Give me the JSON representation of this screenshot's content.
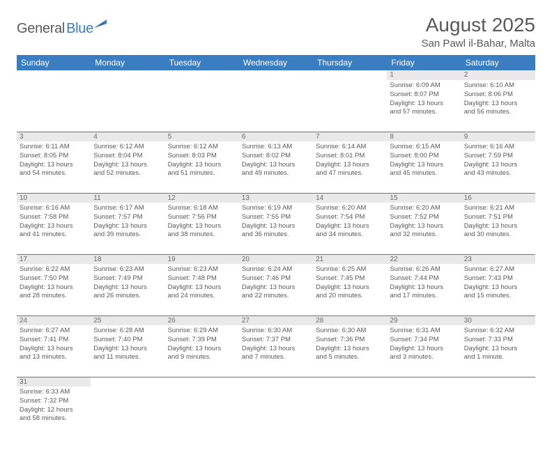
{
  "brand": {
    "name1": "General",
    "name2": "Blue"
  },
  "title": "August 2025",
  "location": "San Pawl il-Bahar, Malta",
  "colors": {
    "header_bg": "#3a7ec1",
    "header_fg": "#ffffff",
    "text": "#595959",
    "daynum_bg": "#e9e9e9",
    "rule": "#3a7ec1"
  },
  "daynames": [
    "Sunday",
    "Monday",
    "Tuesday",
    "Wednesday",
    "Thursday",
    "Friday",
    "Saturday"
  ],
  "weeks": [
    [
      null,
      null,
      null,
      null,
      null,
      {
        "n": "1",
        "sr": "6:09 AM",
        "ss": "8:07 PM",
        "dl": "13 hours and 57 minutes."
      },
      {
        "n": "2",
        "sr": "6:10 AM",
        "ss": "8:06 PM",
        "dl": "13 hours and 56 minutes."
      }
    ],
    [
      {
        "n": "3",
        "sr": "6:11 AM",
        "ss": "8:05 PM",
        "dl": "13 hours and 54 minutes."
      },
      {
        "n": "4",
        "sr": "6:12 AM",
        "ss": "8:04 PM",
        "dl": "13 hours and 52 minutes."
      },
      {
        "n": "5",
        "sr": "6:12 AM",
        "ss": "8:03 PM",
        "dl": "13 hours and 51 minutes."
      },
      {
        "n": "6",
        "sr": "6:13 AM",
        "ss": "8:02 PM",
        "dl": "13 hours and 49 minutes."
      },
      {
        "n": "7",
        "sr": "6:14 AM",
        "ss": "8:01 PM",
        "dl": "13 hours and 47 minutes."
      },
      {
        "n": "8",
        "sr": "6:15 AM",
        "ss": "8:00 PM",
        "dl": "13 hours and 45 minutes."
      },
      {
        "n": "9",
        "sr": "6:16 AM",
        "ss": "7:59 PM",
        "dl": "13 hours and 43 minutes."
      }
    ],
    [
      {
        "n": "10",
        "sr": "6:16 AM",
        "ss": "7:58 PM",
        "dl": "13 hours and 41 minutes."
      },
      {
        "n": "11",
        "sr": "6:17 AM",
        "ss": "7:57 PM",
        "dl": "13 hours and 39 minutes."
      },
      {
        "n": "12",
        "sr": "6:18 AM",
        "ss": "7:56 PM",
        "dl": "13 hours and 38 minutes."
      },
      {
        "n": "13",
        "sr": "6:19 AM",
        "ss": "7:55 PM",
        "dl": "13 hours and 36 minutes."
      },
      {
        "n": "14",
        "sr": "6:20 AM",
        "ss": "7:54 PM",
        "dl": "13 hours and 34 minutes."
      },
      {
        "n": "15",
        "sr": "6:20 AM",
        "ss": "7:52 PM",
        "dl": "13 hours and 32 minutes."
      },
      {
        "n": "16",
        "sr": "6:21 AM",
        "ss": "7:51 PM",
        "dl": "13 hours and 30 minutes."
      }
    ],
    [
      {
        "n": "17",
        "sr": "6:22 AM",
        "ss": "7:50 PM",
        "dl": "13 hours and 28 minutes."
      },
      {
        "n": "18",
        "sr": "6:23 AM",
        "ss": "7:49 PM",
        "dl": "13 hours and 26 minutes."
      },
      {
        "n": "19",
        "sr": "6:23 AM",
        "ss": "7:48 PM",
        "dl": "13 hours and 24 minutes."
      },
      {
        "n": "20",
        "sr": "6:24 AM",
        "ss": "7:46 PM",
        "dl": "13 hours and 22 minutes."
      },
      {
        "n": "21",
        "sr": "6:25 AM",
        "ss": "7:45 PM",
        "dl": "13 hours and 20 minutes."
      },
      {
        "n": "22",
        "sr": "6:26 AM",
        "ss": "7:44 PM",
        "dl": "13 hours and 17 minutes."
      },
      {
        "n": "23",
        "sr": "6:27 AM",
        "ss": "7:43 PM",
        "dl": "13 hours and 15 minutes."
      }
    ],
    [
      {
        "n": "24",
        "sr": "6:27 AM",
        "ss": "7:41 PM",
        "dl": "13 hours and 13 minutes."
      },
      {
        "n": "25",
        "sr": "6:28 AM",
        "ss": "7:40 PM",
        "dl": "13 hours and 11 minutes."
      },
      {
        "n": "26",
        "sr": "6:29 AM",
        "ss": "7:39 PM",
        "dl": "13 hours and 9 minutes."
      },
      {
        "n": "27",
        "sr": "6:30 AM",
        "ss": "7:37 PM",
        "dl": "13 hours and 7 minutes."
      },
      {
        "n": "28",
        "sr": "6:30 AM",
        "ss": "7:36 PM",
        "dl": "13 hours and 5 minutes."
      },
      {
        "n": "29",
        "sr": "6:31 AM",
        "ss": "7:34 PM",
        "dl": "13 hours and 3 minutes."
      },
      {
        "n": "30",
        "sr": "6:32 AM",
        "ss": "7:33 PM",
        "dl": "13 hours and 1 minute."
      }
    ],
    [
      {
        "n": "31",
        "sr": "6:33 AM",
        "ss": "7:32 PM",
        "dl": "12 hours and 58 minutes."
      },
      null,
      null,
      null,
      null,
      null,
      null
    ]
  ],
  "labels": {
    "sunrise": "Sunrise: ",
    "sunset": "Sunset: ",
    "daylight": "Daylight: "
  }
}
